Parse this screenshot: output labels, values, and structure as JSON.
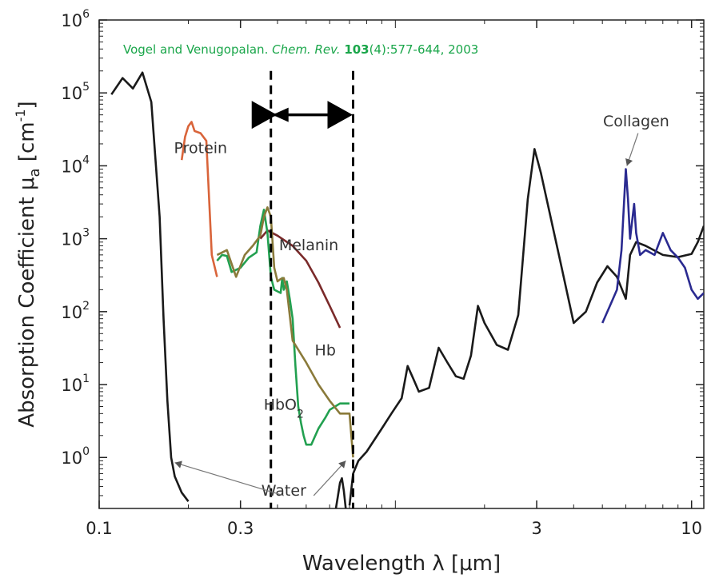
{
  "chart_data": {
    "type": "line",
    "title": "",
    "xlabel": "Wavelength λ [μm]",
    "ylabel": "Absorption Coefficient μa [cm-1]",
    "xscale": "log",
    "yscale": "log",
    "xlim": [
      0.1,
      11
    ],
    "ylim": [
      0.2,
      1000000
    ],
    "grid": false,
    "x_ticks": [
      {
        "value": 0.1,
        "label": "0.1"
      },
      {
        "value": 0.3,
        "label": "0.3"
      },
      {
        "value": 3,
        "label": "3"
      },
      {
        "value": 10,
        "label": "10"
      }
    ],
    "y_ticks": [
      {
        "value": 1,
        "base": "10",
        "exp": "0"
      },
      {
        "value": 10,
        "base": "10",
        "exp": "1"
      },
      {
        "value": 100,
        "base": "10",
        "exp": "2"
      },
      {
        "value": 1000,
        "base": "10",
        "exp": "3"
      },
      {
        "value": 10000,
        "base": "10",
        "exp": "4"
      },
      {
        "value": 100000,
        "base": "10",
        "exp": "5"
      },
      {
        "value": 1000000,
        "base": "10",
        "exp": "6"
      }
    ],
    "citation": {
      "authors": "Vogel and Venugopalan. ",
      "journal": "Chem. Rev. ",
      "volume": "103",
      "rest": "(4):577-644, 2003"
    },
    "series": [
      {
        "name": "Water",
        "color": "#1a1a1a",
        "points": [
          [
            0.11,
            95000
          ],
          [
            0.12,
            160000
          ],
          [
            0.13,
            115000
          ],
          [
            0.14,
            190000
          ],
          [
            0.15,
            75000
          ],
          [
            0.16,
            2000
          ],
          [
            0.165,
            80
          ],
          [
            0.17,
            6
          ],
          [
            0.175,
            1
          ],
          [
            0.18,
            0.55
          ],
          [
            0.19,
            0.33
          ],
          [
            0.2,
            0.25
          ]
        ],
        "points_b": [
          [
            0.63,
            0.2
          ],
          [
            0.64,
            0.3
          ],
          [
            0.65,
            0.45
          ],
          [
            0.66,
            0.52
          ],
          [
            0.67,
            0.35
          ],
          [
            0.68,
            0.2
          ]
        ],
        "points_c": [
          [
            0.7,
            0.22
          ],
          [
            0.72,
            0.6
          ],
          [
            0.75,
            0.9
          ],
          [
            0.8,
            1.2
          ],
          [
            0.9,
            2.5
          ],
          [
            0.97,
            4
          ],
          [
            1.05,
            6.5
          ],
          [
            1.1,
            18
          ],
          [
            1.15,
            12
          ],
          [
            1.2,
            8
          ],
          [
            1.3,
            9
          ],
          [
            1.4,
            32
          ],
          [
            1.5,
            20
          ],
          [
            1.6,
            13
          ],
          [
            1.7,
            12
          ],
          [
            1.8,
            25
          ],
          [
            1.9,
            120
          ],
          [
            2.0,
            70
          ],
          [
            2.2,
            35
          ],
          [
            2.4,
            30
          ],
          [
            2.6,
            90
          ],
          [
            2.8,
            3500
          ],
          [
            2.95,
            17000
          ],
          [
            3.1,
            8000
          ],
          [
            3.3,
            2500
          ],
          [
            3.6,
            500
          ],
          [
            4.0,
            70
          ],
          [
            4.4,
            100
          ],
          [
            4.8,
            250
          ],
          [
            5.2,
            420
          ],
          [
            5.6,
            300
          ],
          [
            6.0,
            150
          ],
          [
            6.2,
            600
          ],
          [
            6.5,
            900
          ],
          [
            7,
            800
          ],
          [
            8,
            600
          ],
          [
            9,
            560
          ],
          [
            10,
            620
          ],
          [
            10.5,
            900
          ],
          [
            11,
            1500
          ]
        ]
      },
      {
        "name": "Protein",
        "color": "#d9643a",
        "points": [
          [
            0.19,
            12000
          ],
          [
            0.195,
            25000
          ],
          [
            0.2,
            35000
          ],
          [
            0.205,
            40000
          ],
          [
            0.21,
            30000
          ],
          [
            0.22,
            28000
          ],
          [
            0.23,
            22000
          ],
          [
            0.24,
            600
          ],
          [
            0.25,
            300
          ]
        ]
      },
      {
        "name": "Melanin",
        "color": "#7a2a2a",
        "points": [
          [
            0.35,
            1000
          ],
          [
            0.37,
            1300
          ],
          [
            0.4,
            1100
          ],
          [
            0.45,
            800
          ],
          [
            0.5,
            500
          ],
          [
            0.55,
            250
          ],
          [
            0.6,
            120
          ],
          [
            0.65,
            60
          ]
        ]
      },
      {
        "name": "HbO2",
        "color": "#22a050",
        "points": [
          [
            0.25,
            500
          ],
          [
            0.26,
            600
          ],
          [
            0.27,
            580
          ],
          [
            0.28,
            350
          ],
          [
            0.3,
            400
          ],
          [
            0.32,
            550
          ],
          [
            0.34,
            650
          ],
          [
            0.35,
            1500
          ],
          [
            0.36,
            2500
          ],
          [
            0.37,
            1200
          ],
          [
            0.38,
            300
          ],
          [
            0.39,
            200
          ],
          [
            0.41,
            180
          ],
          [
            0.415,
            290
          ],
          [
            0.42,
            200
          ],
          [
            0.43,
            260
          ],
          [
            0.44,
            150
          ],
          [
            0.45,
            80
          ],
          [
            0.46,
            18
          ],
          [
            0.47,
            5
          ],
          [
            0.48,
            3
          ],
          [
            0.49,
            2
          ],
          [
            0.5,
            1.5
          ],
          [
            0.52,
            1.5
          ],
          [
            0.55,
            2.5
          ],
          [
            0.58,
            3.5
          ],
          [
            0.6,
            4.5
          ],
          [
            0.65,
            5.5
          ],
          [
            0.7,
            5.5
          ]
        ]
      },
      {
        "name": "Hb",
        "color": "#8a7a3a",
        "points": [
          [
            0.25,
            600
          ],
          [
            0.27,
            700
          ],
          [
            0.29,
            300
          ],
          [
            0.31,
            600
          ],
          [
            0.33,
            800
          ],
          [
            0.35,
            1100
          ],
          [
            0.36,
            2000
          ],
          [
            0.37,
            2700
          ],
          [
            0.38,
            2000
          ],
          [
            0.39,
            400
          ],
          [
            0.4,
            260
          ],
          [
            0.41,
            280
          ],
          [
            0.42,
            290
          ],
          [
            0.43,
            200
          ],
          [
            0.45,
            40
          ],
          [
            0.5,
            20
          ],
          [
            0.55,
            10
          ],
          [
            0.6,
            6
          ],
          [
            0.65,
            4
          ],
          [
            0.7,
            4
          ],
          [
            0.72,
            1
          ]
        ]
      },
      {
        "name": "Collagen",
        "color": "#2a2a90",
        "points": [
          [
            5.0,
            70
          ],
          [
            5.3,
            120
          ],
          [
            5.6,
            200
          ],
          [
            5.8,
            700
          ],
          [
            6.0,
            9000
          ],
          [
            6.1,
            3500
          ],
          [
            6.2,
            1000
          ],
          [
            6.4,
            3000
          ],
          [
            6.5,
            1200
          ],
          [
            6.7,
            600
          ],
          [
            7,
            700
          ],
          [
            7.5,
            600
          ],
          [
            8.0,
            1200
          ],
          [
            8.5,
            700
          ],
          [
            9.0,
            550
          ],
          [
            9.5,
            400
          ],
          [
            10,
            200
          ],
          [
            10.5,
            150
          ],
          [
            11,
            180
          ]
        ]
      }
    ],
    "window_bounds": [
      0.38,
      0.72
    ],
    "annotations": [
      {
        "text": "Protein",
        "x": 0.22,
        "y": 15000
      },
      {
        "text": "Melanin",
        "x": 0.51,
        "y": 700
      },
      {
        "text": "Hb",
        "x": 0.58,
        "y": 25
      },
      {
        "text": "HbO",
        "sub": "2",
        "x": 0.42,
        "y": 4.5
      },
      {
        "text": "Water",
        "x": 0.42,
        "y": 0.3
      },
      {
        "text": "Collagen",
        "x": 6.5,
        "y": 35000
      }
    ],
    "arrows": [
      {
        "from": [
          0.42,
          0.3
        ],
        "to": [
          0.18,
          0.85
        ]
      },
      {
        "from": [
          0.53,
          0.3
        ],
        "to": [
          0.68,
          0.9
        ]
      },
      {
        "from": [
          6.6,
          28000
        ],
        "to": [
          6.05,
          10000
        ]
      }
    ]
  }
}
